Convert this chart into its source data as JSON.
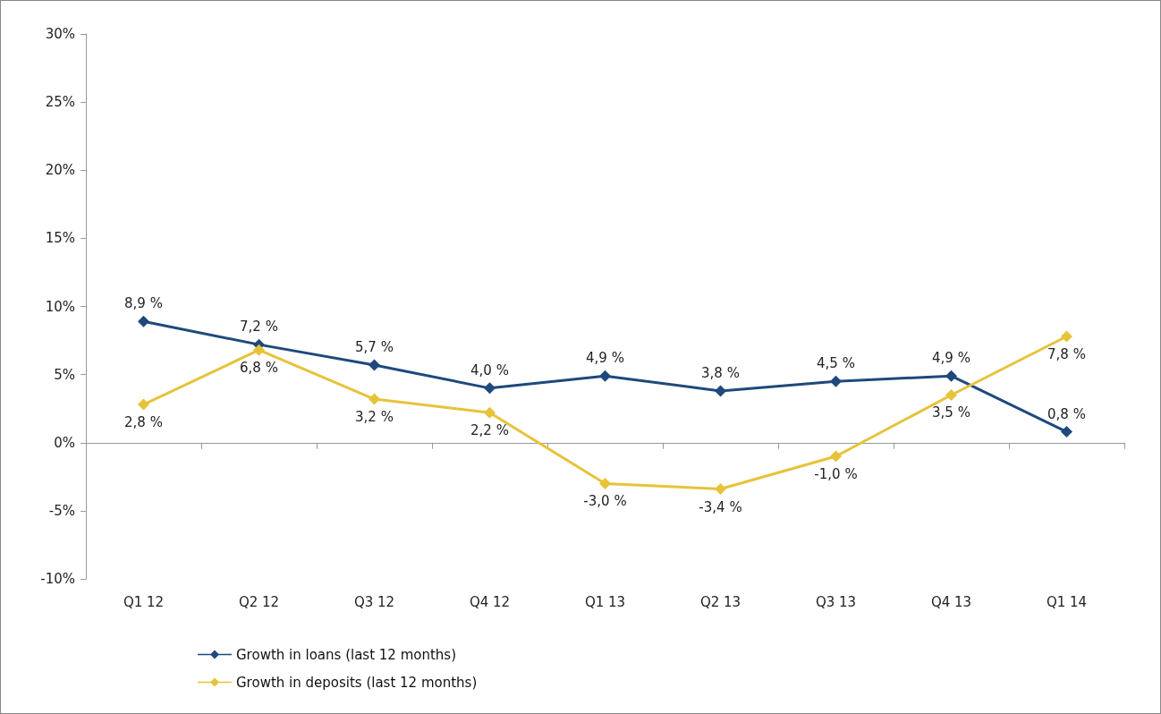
{
  "chart_data": {
    "type": "line",
    "categories": [
      "Q1 12",
      "Q2 12",
      "Q3 12",
      "Q4 12",
      "Q1 13",
      "Q2 13",
      "Q3 13",
      "Q4 13",
      "Q1 14"
    ],
    "series": [
      {
        "name": "Growth in loans (last 12 months)",
        "color": "#1f497d",
        "values": [
          8.9,
          7.2,
          5.7,
          4.0,
          4.9,
          3.8,
          4.5,
          4.9,
          0.8
        ],
        "value_labels": [
          "8,9 %",
          "7,2 %",
          "5,7 %",
          "4,0 %",
          "4,9 %",
          "3,8 %",
          "4,5 %",
          "4,9 %",
          "0,8 %"
        ]
      },
      {
        "name": "Growth in deposits (last 12 months)",
        "color": "#e6c339",
        "values": [
          2.8,
          6.8,
          3.2,
          2.2,
          -3.0,
          -3.4,
          -1.0,
          3.5,
          7.8
        ],
        "value_labels": [
          "2,8 %",
          "6,8 %",
          "3,2 %",
          "2,2 %",
          "-3,0 %",
          "-3,4 %",
          "-1,0 %",
          "3,5 %",
          "7,8 %"
        ]
      }
    ],
    "ylim": [
      -10,
      30
    ],
    "yticks": [
      {
        "value": -10,
        "label": "-10%"
      },
      {
        "value": -5,
        "label": "-5%"
      },
      {
        "value": 0,
        "label": "0%"
      },
      {
        "value": 5,
        "label": "5%"
      },
      {
        "value": 10,
        "label": "10%"
      },
      {
        "value": 15,
        "label": "15%"
      },
      {
        "value": 20,
        "label": "20%"
      },
      {
        "value": 25,
        "label": "25%"
      },
      {
        "value": 30,
        "label": "30%"
      }
    ],
    "legend": "bottom left",
    "marker": "diamond",
    "line_style": "solid"
  }
}
